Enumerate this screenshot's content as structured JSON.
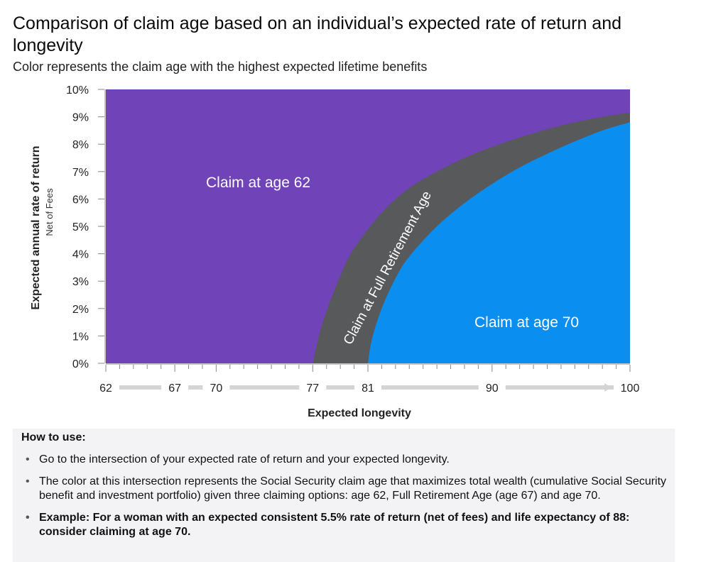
{
  "header": {
    "title": "Comparison of claim age based on an individual’s expected rate of return and longevity",
    "subtitle": "Color represents the claim age with the highest expected lifetime benefits"
  },
  "colors": {
    "age62": "#7044b8",
    "fra": "#58595b",
    "age70": "#0a8ff0",
    "axis": "#888888",
    "arrow": "#d4d4d4"
  },
  "chart_data": {
    "type": "area",
    "xlabel": "Expected longevity",
    "ylabel": "Expected annual rate of return",
    "ylabel_sub": "Net of Fees",
    "xlim": [
      62,
      100
    ],
    "ylim": [
      0,
      10
    ],
    "x_ticks": [
      "62",
      "67",
      "70",
      "77",
      "81",
      "90",
      "100"
    ],
    "x_tick_values": [
      62,
      67,
      70,
      77,
      81,
      90,
      100
    ],
    "y_ticks": [
      "0%",
      "1%",
      "2%",
      "3%",
      "4%",
      "5%",
      "6%",
      "7%",
      "8%",
      "9%",
      "10%"
    ],
    "y_tick_values": [
      0,
      1,
      2,
      3,
      4,
      5,
      6,
      7,
      8,
      9,
      10
    ],
    "grid": false,
    "regions": [
      {
        "name": "Claim at age 62",
        "label": "Claim at age 62"
      },
      {
        "name": "Claim at Full Retirement Age",
        "label": "Claim at Full Retirement Age"
      },
      {
        "name": "Claim at age 70",
        "label": "Claim at age 70"
      }
    ],
    "boundary_62_fra": {
      "x": [
        77,
        77.5,
        78,
        79,
        80,
        82,
        84,
        86,
        88,
        90,
        92,
        94,
        96,
        98,
        100
      ],
      "y": [
        0,
        1.1,
        1.9,
        3.2,
        4.2,
        5.5,
        6.4,
        7.0,
        7.5,
        7.9,
        8.25,
        8.55,
        8.8,
        9.0,
        9.15
      ]
    },
    "boundary_fra_70": {
      "x": [
        81,
        81.3,
        82,
        83,
        84,
        86,
        88,
        90,
        92,
        94,
        96,
        98,
        100
      ],
      "y": [
        0,
        0.9,
        2.0,
        3.1,
        3.9,
        5.0,
        5.85,
        6.55,
        7.15,
        7.65,
        8.1,
        8.5,
        8.8
      ]
    }
  },
  "howto": {
    "title": "How to use:",
    "items": [
      "Go to the intersection of your expected rate of return and your expected longevity.",
      "The color at this intersection represents the Social Security claim age that maximizes total wealth (cumulative Social Security benefit and investment portfolio) given three claiming options: age 62, Full Retirement Age (age 67) and age 70.",
      "Example: For a woman with an expected consistent 5.5% rate of return (net of fees) and life expectancy of 88: consider claiming at age 70."
    ]
  }
}
